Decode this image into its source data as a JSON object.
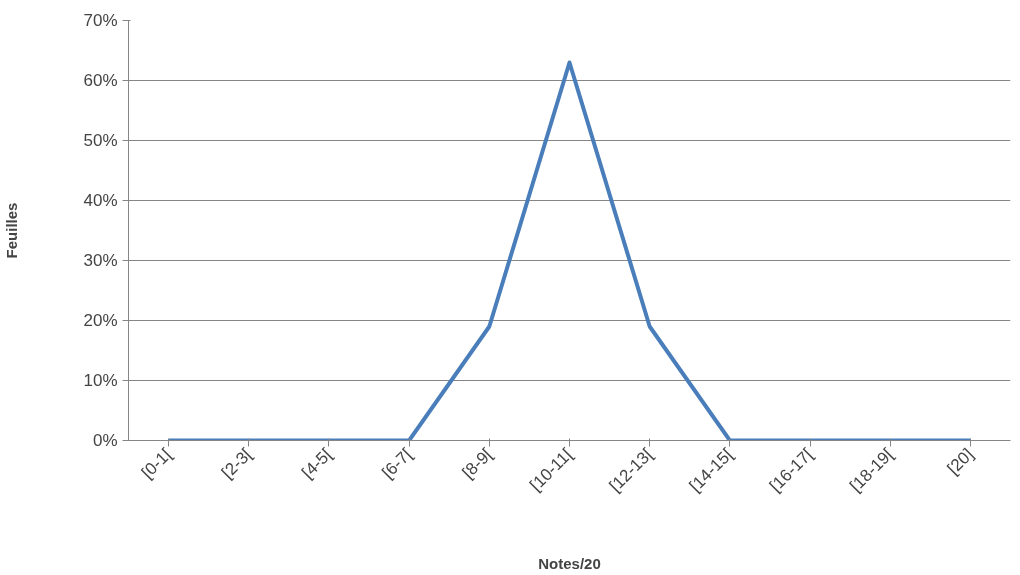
{
  "chart_data": {
    "type": "line",
    "xlabel": "Notes/20",
    "ylabel": "Feuilles",
    "categories": [
      "[0-1[",
      "[2-3[",
      "[4-5[",
      "[6-7[",
      "[8-9[",
      "[10-11[",
      "[12-13[",
      "[14-15[",
      "[16-17[",
      "[18-19[",
      "[20]"
    ],
    "series": [
      {
        "color": "#4a7ebb",
        "values": [
          0,
          0,
          0,
          0,
          19,
          63,
          19,
          0,
          0,
          0,
          0
        ]
      }
    ],
    "ylim": [
      0,
      70
    ],
    "yticks": [
      {
        "value": 0,
        "label": "0%"
      },
      {
        "value": 10,
        "label": "10%"
      },
      {
        "value": 20,
        "label": "20%"
      },
      {
        "value": 30,
        "label": "30%"
      },
      {
        "value": 40,
        "label": "40%"
      },
      {
        "value": 50,
        "label": "50%"
      },
      {
        "value": 60,
        "label": "60%"
      },
      {
        "value": 70,
        "label": "70%"
      }
    ],
    "grid": "y",
    "marker": "none",
    "line_style": "solid"
  }
}
